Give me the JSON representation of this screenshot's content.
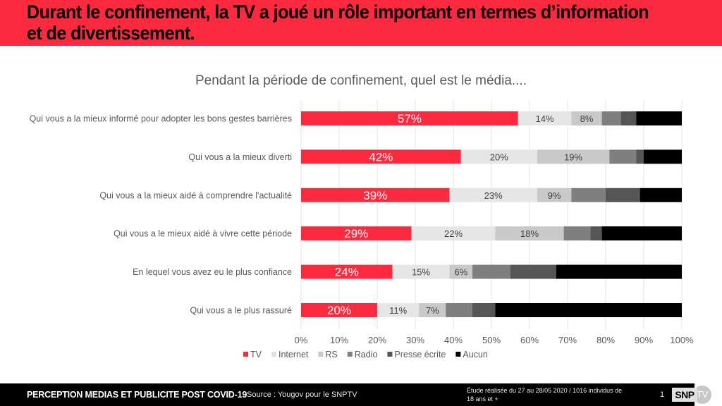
{
  "header": {
    "title": "Durant le confinement, la TV a joué un rôle important en termes d’information et de divertissement."
  },
  "footer": {
    "title": "PERCEPTION MEDIAS ET PUBLICITE POST COVID-19",
    "source": "Source : Yougov pour le SNPTV",
    "study": "Étude réalisée du 27 au 28/05 2020 / 1016 individus de 18 ans et +",
    "page": "1",
    "logo_text": "SNP",
    "logo_circle": "TV"
  },
  "chart_data": {
    "type": "bar",
    "orientation": "horizontal",
    "stacked": true,
    "title": "Pendant la période de confinement, quel est le média....",
    "xlabel": "",
    "ylabel": "",
    "xlim": [
      0,
      100
    ],
    "grid": true,
    "legend_position": "bottom",
    "x_ticks": [
      "0%",
      "10%",
      "20%",
      "30%",
      "40%",
      "50%",
      "60%",
      "70%",
      "80%",
      "90%",
      "100%"
    ],
    "categories": [
      "Qui vous a la mieux informé pour adopter les bons gestes barrières",
      "Qui vous a la mieux diverti",
      "Qui vous a la mieux aidé à comprendre l'actualité",
      "Qui vous a le mieux aidé à vivre cette période",
      "En lequel vous avez eu le plus confiance",
      "Qui vous a le plus rassuré"
    ],
    "series": [
      {
        "name": "TV",
        "color": "#FB2A3E",
        "label_color": "#ffffff",
        "show_labels": true,
        "values": [
          57,
          42,
          39,
          29,
          24,
          20
        ]
      },
      {
        "name": "Internet",
        "color": "#E6E6E6",
        "label_color": "#404040",
        "show_labels": true,
        "values": [
          14,
          20,
          23,
          22,
          15,
          11
        ]
      },
      {
        "name": "RS",
        "color": "#C9C9C9",
        "label_color": "#404040",
        "show_labels": true,
        "values": [
          8,
          19,
          9,
          18,
          6,
          7
        ]
      },
      {
        "name": "Radio",
        "color": "#7F7F7F",
        "label_color": "#ffffff",
        "show_labels": false,
        "values": [
          5,
          7,
          9,
          7,
          10,
          7
        ]
      },
      {
        "name": "Presse écrite",
        "color": "#555555",
        "label_color": "#ffffff",
        "show_labels": false,
        "values": [
          4,
          2,
          9,
          3,
          12,
          6
        ]
      },
      {
        "name": "Aucun",
        "color": "#000000",
        "label_color": "#ffffff",
        "show_labels": false,
        "values": [
          12,
          10,
          11,
          21,
          33,
          49
        ]
      }
    ]
  }
}
